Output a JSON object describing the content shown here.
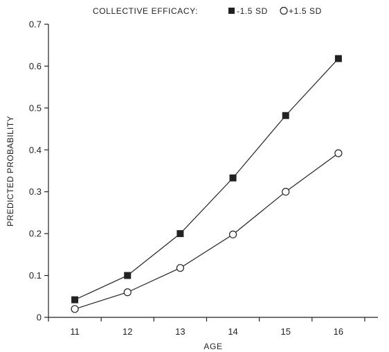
{
  "chart_data": {
    "type": "line",
    "title": "",
    "legend": {
      "title": "COLLECTIVE EFFICACY:",
      "placement": "top-center"
    },
    "xlabel": "AGE",
    "ylabel": "PREDICTED PROBABILITY",
    "x": [
      11,
      12,
      13,
      14,
      15,
      16
    ],
    "x_ticks": [
      "11",
      "12",
      "13",
      "14",
      "15",
      "16"
    ],
    "xlim": [
      10.5,
      16.75
    ],
    "ylim": [
      0,
      0.7
    ],
    "y_ticks": [
      "0",
      "0.1",
      "0.2",
      "0.3",
      "0.4",
      "0.5",
      "0.6",
      "0.7"
    ],
    "grid": false,
    "series": [
      {
        "name": "-1.5 SD",
        "marker": "filled-square",
        "color": "#222222",
        "values": [
          0.042,
          0.1,
          0.2,
          0.333,
          0.482,
          0.618
        ]
      },
      {
        "name": "+1.5 SD",
        "marker": "open-circle",
        "color": "#222222",
        "values": [
          0.02,
          0.06,
          0.118,
          0.198,
          0.3,
          0.392
        ]
      }
    ]
  }
}
